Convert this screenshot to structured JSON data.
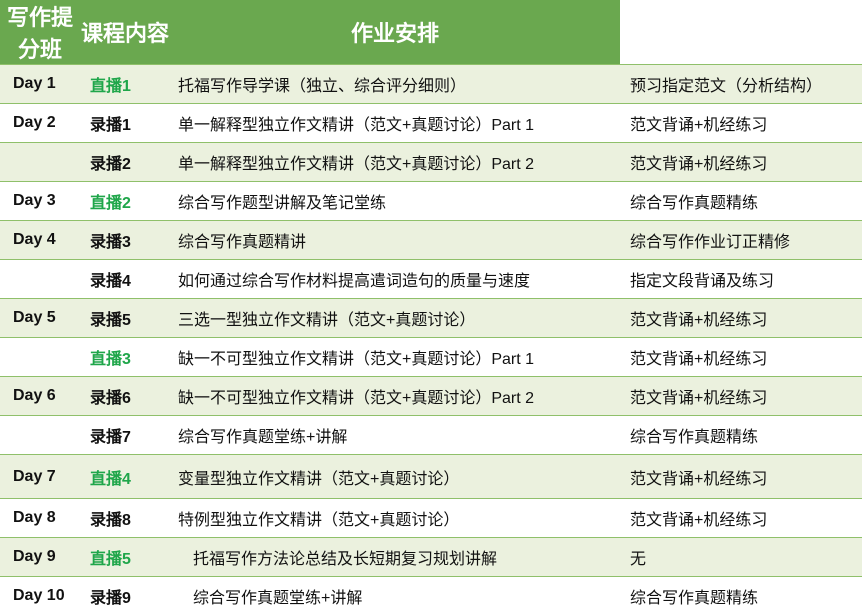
{
  "header": {
    "columns": [
      "写作提分班",
      "课程内容",
      "作业安排"
    ],
    "color": "#6aa84f"
  },
  "table": {
    "rows": [
      {
        "day": "Day 1",
        "session": "直播1",
        "session_color": "#1fa64a",
        "content": "托福写作导学课（独立、综合评分细则）",
        "homework": "预习指定范文（分析结构）"
      },
      {
        "day": "Day 2",
        "session": "录播1",
        "content": "单一解释型独立作文精讲（范文+真题讨论）Part 1",
        "homework": "范文背诵+机经练习"
      },
      {
        "session": "录播2",
        "content": "单一解释型独立作文精讲（范文+真题讨论）Part 2",
        "homework": "范文背诵+机经练习"
      },
      {
        "day": "Day 3",
        "session": "直播2",
        "session_color": "#1fa64a",
        "content": "综合写作题型讲解及笔记堂练",
        "homework": "综合写作真题精练"
      },
      {
        "day": "Day 4",
        "session": "录播3",
        "content": "综合写作真题精讲",
        "homework": "综合写作作业订正精修"
      },
      {
        "session": "录播4",
        "content": "如何通过综合写作材料提高遣词造句的质量与速度",
        "homework": "指定文段背诵及练习"
      },
      {
        "day": "Day 5",
        "session": "录播5",
        "content": "三选一型独立作文精讲（范文+真题讨论）",
        "homework": "范文背诵+机经练习"
      },
      {
        "session": "直播3",
        "session_color": "#1fa64a",
        "content": "缺一不可型独立作文精讲（范文+真题讨论）Part 1",
        "homework": "范文背诵+机经练习"
      },
      {
        "day": "Day 6",
        "session": "录播6",
        "content": "缺一不可型独立作文精讲（范文+真题讨论）Part 2",
        "homework": "范文背诵+机经练习"
      },
      {
        "session": "录播7",
        "content": "综合写作真题堂练+讲解",
        "homework": "综合写作真题精练"
      },
      {
        "day": "Day 7",
        "session": "直播4",
        "session_color": "#1fa64a",
        "content": "变量型独立作文精讲（范文+真题讨论）",
        "homework": "范文背诵+机经练习"
      },
      {
        "day": "Day 8",
        "session": "录播8",
        "content": "特例型独立作文精讲（范文+真题讨论）",
        "homework": "范文背诵+机经练习"
      },
      {
        "day": "Day 9",
        "session": "直播5",
        "session_color": "#1fa64a",
        "content": "托福写作方法论总结及长短期复习规划讲解",
        "homework": "无"
      },
      {
        "day": "Day 10",
        "session": "录播9",
        "content": "综合写作真题堂练+讲解",
        "homework": "综合写作真题精练"
      }
    ]
  }
}
